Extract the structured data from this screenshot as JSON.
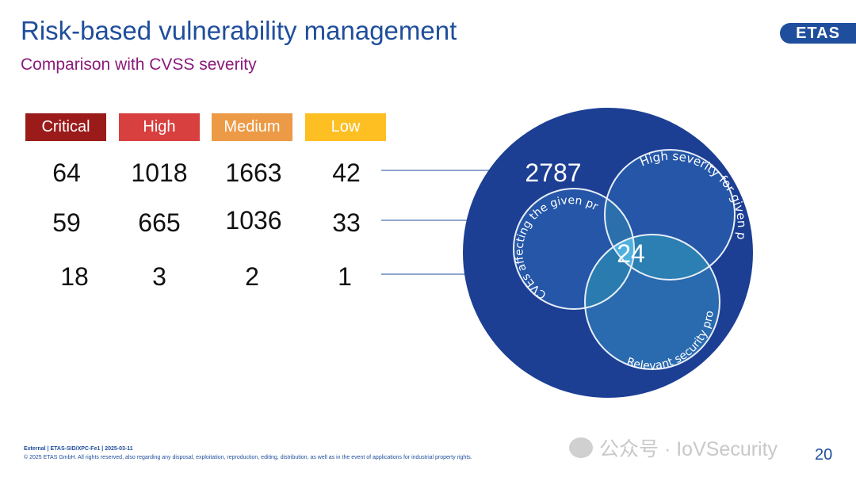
{
  "slide": {
    "title": "Risk-based vulnerability management",
    "subtitle": "Comparison with CVSS severity",
    "logo": "ETAS",
    "page_number": "20"
  },
  "severity": {
    "headers": [
      {
        "label": "Critical",
        "color": "#9b1b1b"
      },
      {
        "label": "High",
        "color": "#d8403f"
      },
      {
        "label": "Medium",
        "color": "#ec9a45"
      },
      {
        "label": "Low",
        "color": "#fdbf22"
      }
    ],
    "rows": [
      [
        "64",
        "1018",
        "1663",
        "42"
      ],
      [
        "59",
        "665",
        "1036",
        "33"
      ],
      [
        "18",
        "3",
        "2",
        "1"
      ]
    ]
  },
  "venn": {
    "total": "2787",
    "intersection": "24",
    "sets": [
      {
        "label": "High severity for given product"
      },
      {
        "label": "CVEs affecting the given product"
      },
      {
        "label": "Relevant security property"
      }
    ]
  },
  "footer": {
    "line1": "External | ETAS-SID/XPC-Fe1 | 2025-03-11",
    "line2": "© 2025 ETAS GmbH. All rights reserved, also regarding any disposal, exploitation, reproduction, editing, distribution, as well as in the event of applications for industrial property rights."
  },
  "watermark": "公众号 · IoVSecurity",
  "colors": {
    "brand": "#1f4e9c",
    "big_circle": "#1c3f94",
    "subtitle": "#8b1a7a"
  }
}
